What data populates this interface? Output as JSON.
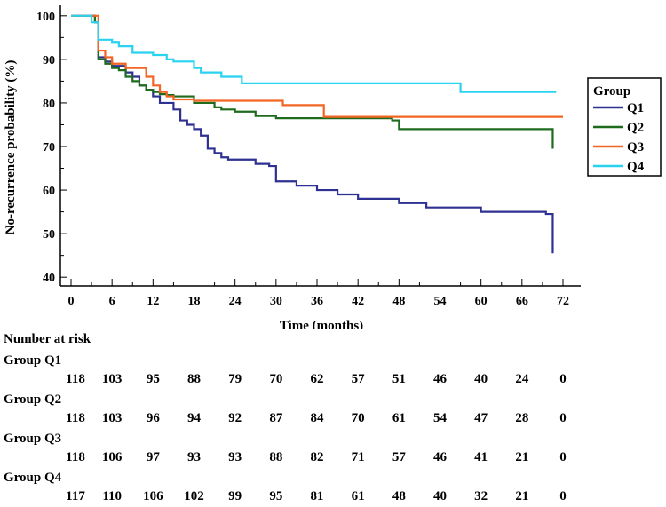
{
  "chart_data": {
    "type": "line",
    "step": true,
    "xlabel": "Time (months)",
    "ylabel": "No-recurrence probability (%)",
    "xlim": [
      0,
      72
    ],
    "ylim": [
      38,
      102
    ],
    "xticks": [
      0,
      6,
      12,
      18,
      24,
      30,
      36,
      42,
      48,
      54,
      60,
      66,
      72
    ],
    "yticks": [
      40,
      50,
      60,
      70,
      80,
      90,
      100
    ],
    "legend": {
      "title": "Group",
      "position": "right"
    },
    "series": [
      {
        "name": "Q1",
        "color": "#2e3192",
        "x": [
          0,
          3.5,
          4,
          5,
          6,
          8,
          9,
          10,
          11,
          12,
          13,
          15,
          16,
          17,
          18,
          19,
          20,
          21,
          22,
          23,
          24,
          27,
          29,
          30,
          33,
          36,
          39,
          42,
          48,
          52,
          60,
          69.5,
          70.5
        ],
        "y": [
          100,
          98.5,
          90.5,
          89.5,
          88.5,
          87,
          86,
          84,
          83,
          81.5,
          80,
          78.5,
          76,
          75,
          74,
          72.5,
          69.5,
          68.5,
          67.5,
          67,
          67,
          66,
          65.5,
          62,
          61,
          60,
          59,
          58,
          57,
          56,
          55,
          54.5,
          45.5
        ]
      },
      {
        "name": "Q2",
        "color": "#1e6b1e",
        "x": [
          0,
          3.5,
          4,
          5,
          6,
          7,
          8,
          9,
          10,
          11,
          12,
          13,
          14,
          15,
          18,
          21,
          22,
          24,
          27,
          30,
          36,
          47,
          48,
          70,
          70.5
        ],
        "y": [
          100,
          98.5,
          90,
          89,
          88,
          87.5,
          86,
          85,
          84,
          83,
          82.5,
          82,
          81.8,
          81.5,
          80,
          79,
          78.5,
          78,
          77,
          76.5,
          76.5,
          76,
          74,
          74,
          69.5
        ]
      },
      {
        "name": "Q3",
        "color": "#f26522",
        "x": [
          0,
          3.5,
          4,
          5,
          6,
          8,
          11,
          12,
          13,
          14,
          15,
          18,
          24,
          31,
          37,
          72
        ],
        "y": [
          100,
          100,
          92,
          90.5,
          89,
          88,
          86,
          84,
          82.5,
          81.5,
          80.8,
          80.5,
          80.5,
          79.5,
          76.8,
          76.8
        ]
      },
      {
        "name": "Q4",
        "color": "#29d3f0",
        "x": [
          0,
          3,
          4,
          6,
          7,
          9,
          12,
          14,
          15,
          18,
          19,
          22,
          25,
          57,
          71
        ],
        "y": [
          100,
          98.5,
          94.5,
          94,
          93,
          91.5,
          91,
          90,
          89.5,
          88,
          87,
          86,
          84.5,
          82.5,
          82.5
        ]
      }
    ]
  },
  "risk_table": {
    "title": "Number at risk",
    "times": [
      0,
      6,
      12,
      18,
      24,
      30,
      36,
      42,
      48,
      54,
      60,
      66,
      72
    ],
    "groups": [
      {
        "label": "Group Q1",
        "values": [
          "118",
          "103",
          "95",
          "88",
          "79",
          "70",
          "62",
          "57",
          "51",
          "46",
          "40",
          "24",
          "0"
        ]
      },
      {
        "label": "Group Q2",
        "values": [
          "118",
          "103",
          "96",
          "94",
          "92",
          "87",
          "84",
          "70",
          "61",
          "54",
          "47",
          "28",
          "0"
        ]
      },
      {
        "label": "Group Q3",
        "values": [
          "118",
          "106",
          "97",
          "93",
          "93",
          "88",
          "82",
          "71",
          "57",
          "46",
          "41",
          "21",
          "0"
        ]
      },
      {
        "label": "Group Q4",
        "values": [
          "117",
          "110",
          "106",
          "102",
          "99",
          "95",
          "81",
          "61",
          "48",
          "40",
          "32",
          "21",
          "0"
        ]
      }
    ]
  }
}
